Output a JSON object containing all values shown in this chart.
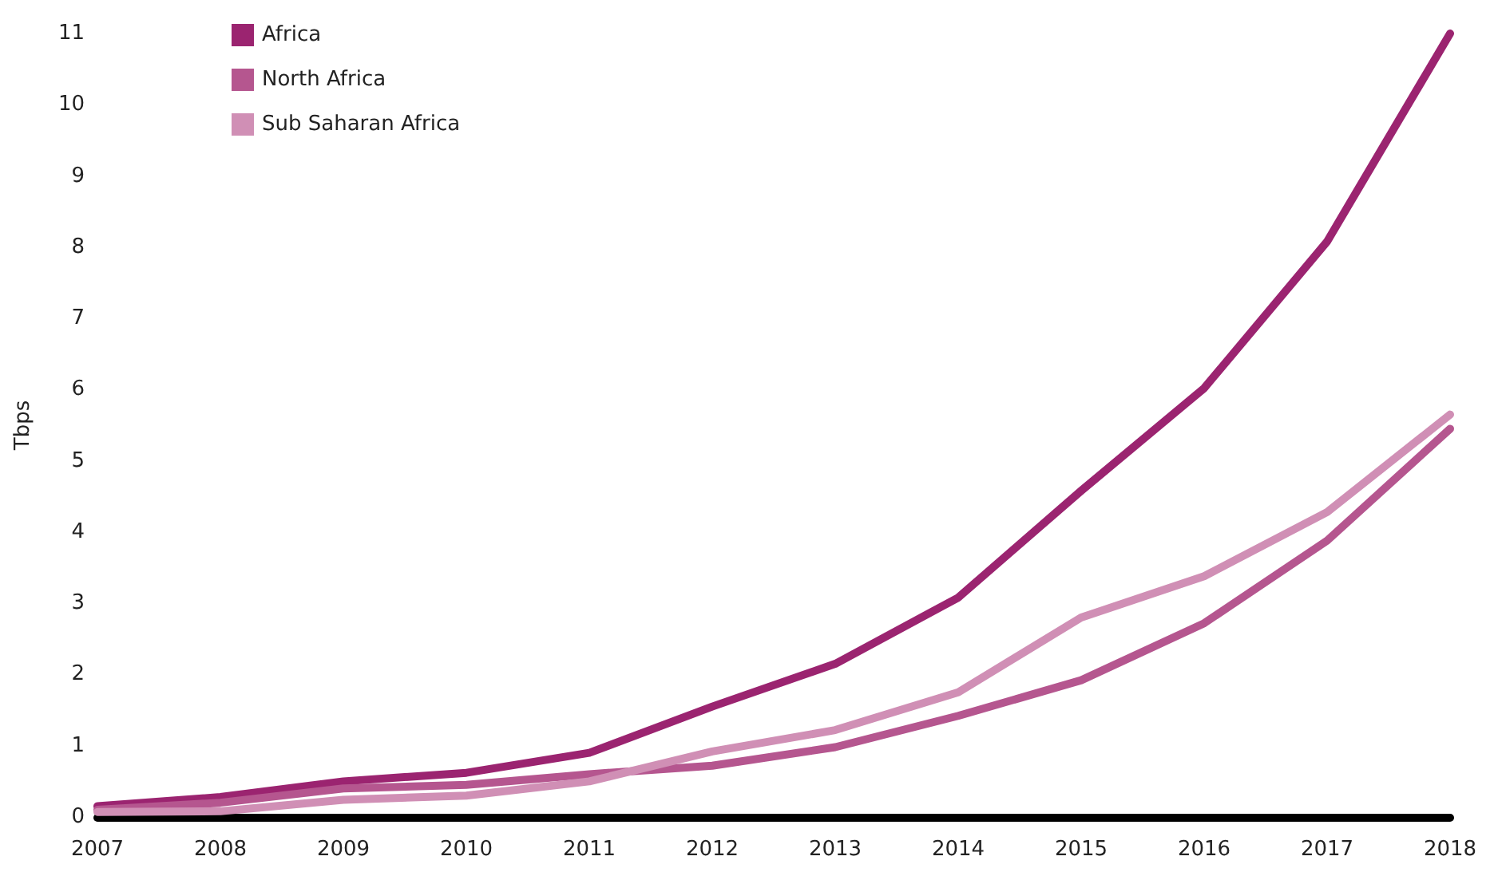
{
  "chart_data": {
    "type": "line",
    "ylabel": "Tbps",
    "categories": [
      "2007",
      "2008",
      "2009",
      "2010",
      "2011",
      "2012",
      "2013",
      "2014",
      "2015",
      "2016",
      "2017",
      "2018"
    ],
    "series": [
      {
        "name": "Africa",
        "color": "#9b2470",
        "values": [
          0.15,
          0.28,
          0.5,
          0.62,
          0.9,
          1.55,
          2.15,
          3.08,
          4.58,
          6.02,
          8.08,
          11.0
        ]
      },
      {
        "name": "North Africa",
        "color": "#b5568f",
        "values": [
          0.1,
          0.2,
          0.4,
          0.45,
          0.6,
          0.72,
          0.98,
          1.42,
          1.92,
          2.72,
          3.88,
          5.45
        ]
      },
      {
        "name": "Sub Saharan Africa",
        "color": "#d08fb5",
        "values": [
          0.07,
          0.08,
          0.24,
          0.3,
          0.5,
          0.92,
          1.22,
          1.75,
          2.8,
          3.38,
          4.28,
          5.65
        ]
      }
    ],
    "ylim": [
      0,
      11
    ],
    "yticks": [
      0,
      1,
      2,
      3,
      4,
      5,
      6,
      7,
      8,
      9,
      10,
      11
    ],
    "grid": false,
    "legend": "top left",
    "marker": "none",
    "line_style": "solid"
  }
}
